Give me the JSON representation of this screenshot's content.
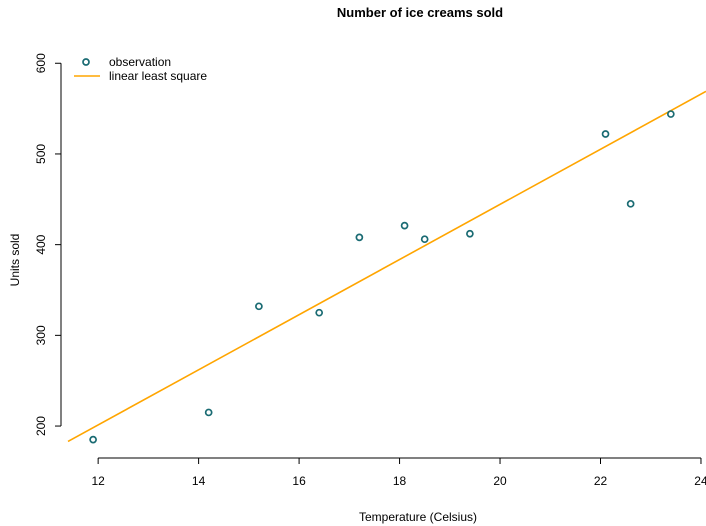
{
  "chart_data": {
    "type": "scatter",
    "title": "Number of ice creams sold",
    "xlabel": "Temperature (Celsius)",
    "ylabel": "Units sold",
    "xlim": [
      11.4,
      24.1
    ],
    "ylim": [
      178,
      608
    ],
    "xticks": [
      12,
      14,
      16,
      18,
      20,
      22,
      24
    ],
    "yticks": [
      200,
      300,
      400,
      500,
      600
    ],
    "grid": false,
    "legend_position": "top-left",
    "series": [
      {
        "name": "observation",
        "kind": "points",
        "color": "#1a6b73",
        "points": [
          {
            "x": 11.9,
            "y": 185
          },
          {
            "x": 14.2,
            "y": 215
          },
          {
            "x": 15.2,
            "y": 332
          },
          {
            "x": 16.4,
            "y": 325
          },
          {
            "x": 17.2,
            "y": 408
          },
          {
            "x": 18.1,
            "y": 421
          },
          {
            "x": 18.5,
            "y": 406
          },
          {
            "x": 19.4,
            "y": 412
          },
          {
            "x": 22.1,
            "y": 522
          },
          {
            "x": 22.6,
            "y": 445
          },
          {
            "x": 23.4,
            "y": 544
          }
        ]
      },
      {
        "name": "linear least square",
        "kind": "line",
        "color": "#ffa500",
        "points": [
          {
            "x": 11.4,
            "y": 183
          },
          {
            "x": 24.1,
            "y": 569
          }
        ]
      }
    ]
  }
}
